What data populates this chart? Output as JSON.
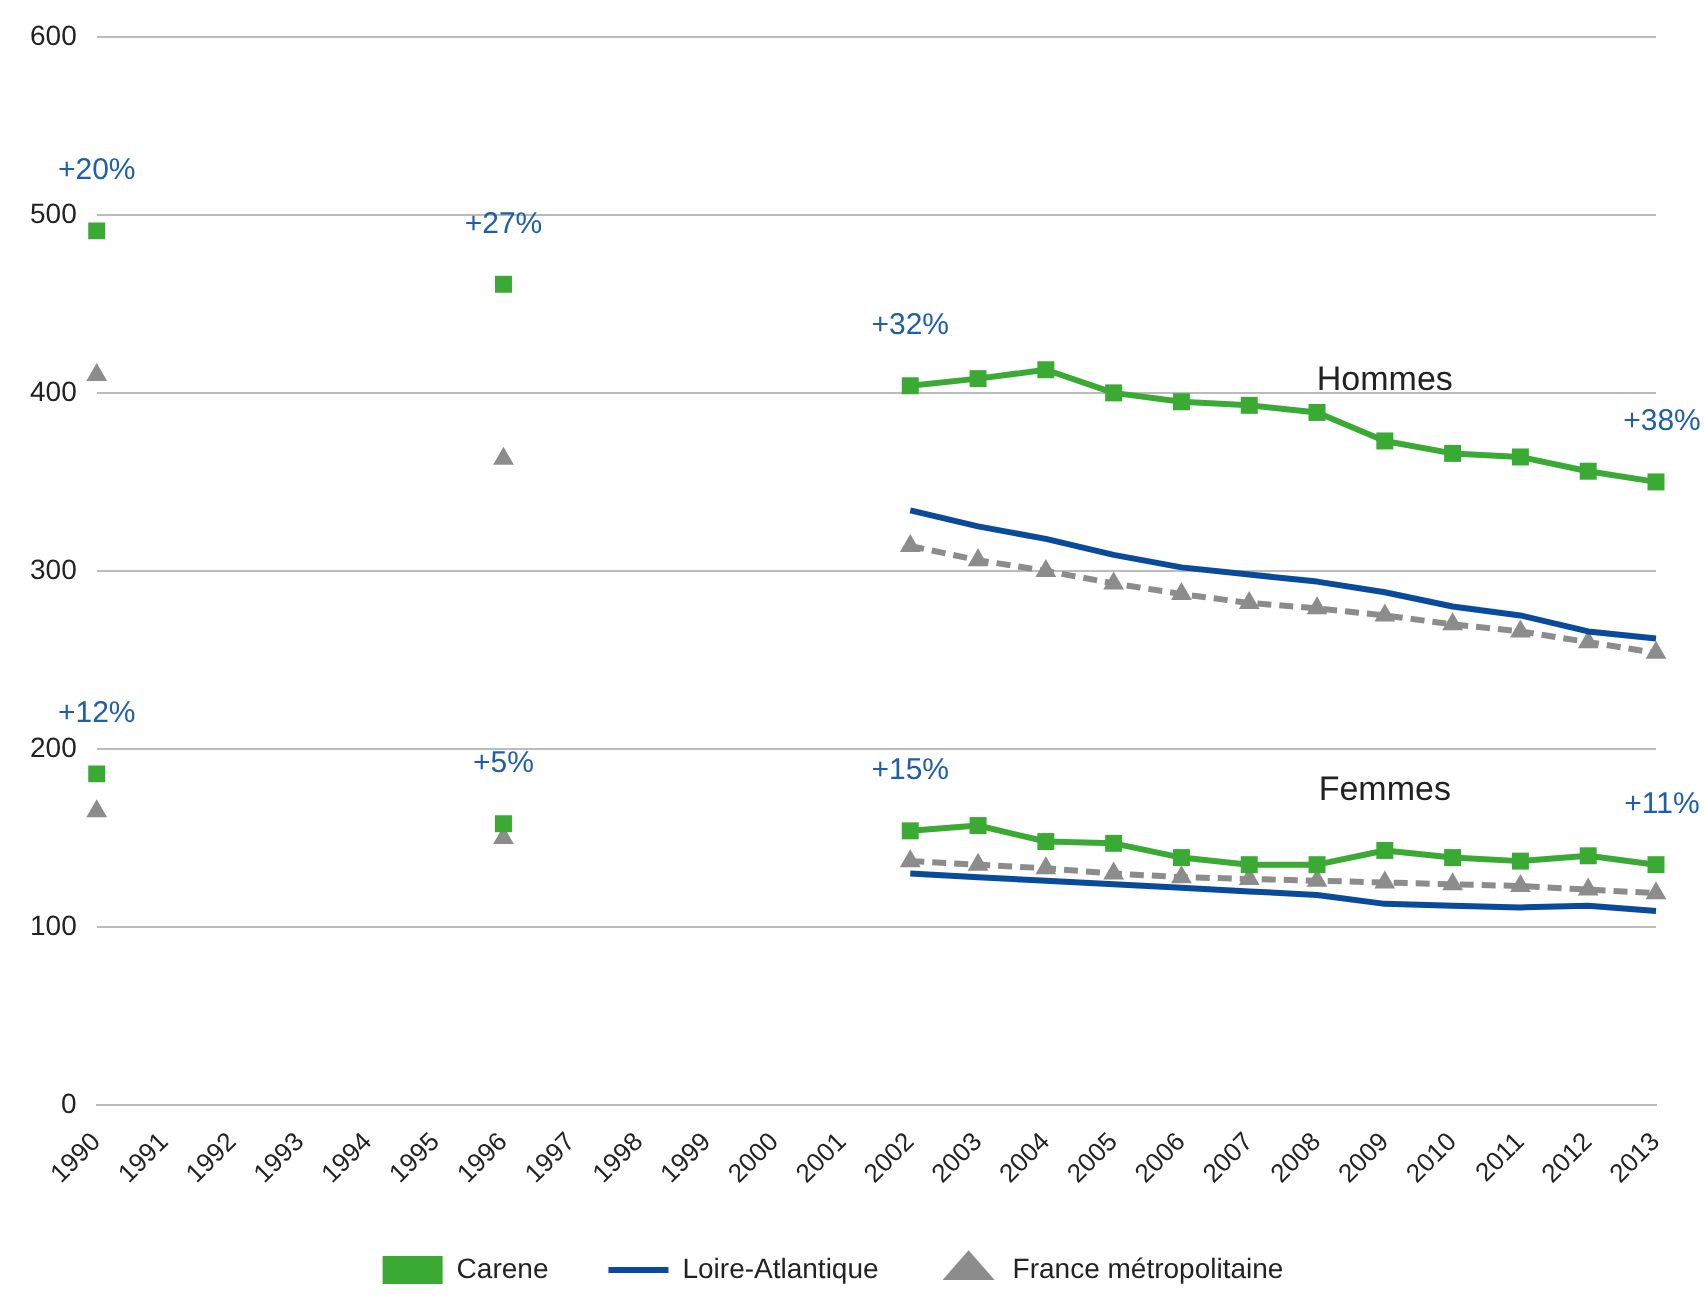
{
  "chart_data": {
    "type": "line",
    "categories": [
      "1990",
      "1991",
      "1992",
      "1993",
      "1994",
      "1995",
      "1996",
      "1997",
      "1998",
      "1999",
      "2000",
      "2001",
      "2002",
      "2003",
      "2004",
      "2005",
      "2006",
      "2007",
      "2008",
      "2009",
      "2010",
      "2011",
      "2012",
      "2013"
    ],
    "series": [
      {
        "name": "Carene",
        "color": "#3aaa35",
        "marker": "square",
        "line_style": "solid",
        "values": [
          491,
          null,
          null,
          null,
          null,
          null,
          461,
          null,
          null,
          null,
          null,
          null,
          404,
          408,
          413,
          400,
          395,
          393,
          389,
          373,
          366,
          364,
          356,
          350
        ]
      },
      {
        "name": "Loire-Atlantique",
        "color": "#0a4a9a",
        "marker": "none",
        "line_style": "solid",
        "values": [
          null,
          null,
          null,
          null,
          null,
          null,
          null,
          null,
          null,
          null,
          null,
          null,
          334,
          325,
          318,
          309,
          302,
          298,
          294,
          288,
          280,
          275,
          266,
          262
        ]
      },
      {
        "name": "France métropolitaine",
        "color": "#8c8c8c",
        "marker": "triangle",
        "line_style": "dashed",
        "values": [
          410,
          null,
          null,
          null,
          null,
          null,
          363,
          null,
          null,
          null,
          null,
          null,
          314,
          306,
          300,
          293,
          287,
          282,
          279,
          275,
          270,
          266,
          260,
          254
        ]
      },
      {
        "color": "#3aaa35",
        "marker": "square",
        "line_style": "solid",
        "values": [
          186,
          null,
          null,
          null,
          null,
          null,
          158,
          null,
          null,
          null,
          null,
          null,
          154,
          157,
          148,
          147,
          139,
          135,
          135,
          143,
          139,
          137,
          140,
          135
        ]
      },
      {
        "color": "#0a4a9a",
        "marker": "none",
        "line_style": "solid",
        "values": [
          null,
          null,
          null,
          null,
          null,
          null,
          null,
          null,
          null,
          null,
          null,
          null,
          130,
          128,
          126,
          124,
          122,
          120,
          118,
          113,
          112,
          111,
          112,
          109
        ]
      },
      {
        "color": "#8c8c8c",
        "marker": "triangle",
        "line_style": "dashed",
        "values": [
          165,
          null,
          null,
          null,
          null,
          null,
          150,
          null,
          null,
          null,
          null,
          null,
          137,
          135,
          133,
          130,
          128,
          127,
          126,
          125,
          124,
          123,
          121,
          119
        ]
      }
    ],
    "ylim": [
      0,
      600
    ],
    "yticks": [
      0,
      100,
      200,
      300,
      400,
      500,
      600
    ],
    "grid": "y",
    "legend": "bottom",
    "annotations": [
      {
        "text": "+20%",
        "x": "1990",
        "y": 491
      },
      {
        "text": "+27%",
        "x": "1996",
        "y": 461
      },
      {
        "text": "+32%",
        "x": "2002",
        "y": 404
      },
      {
        "text": "+38%",
        "x": "2013",
        "y": 350
      },
      {
        "text": "+12%",
        "x": "1990",
        "y": 186
      },
      {
        "text": "+5%",
        "x": "1996",
        "y": 158
      },
      {
        "text": "+15%",
        "x": "2002",
        "y": 154
      },
      {
        "text": "+11%",
        "x": "2013",
        "y": 135
      },
      {
        "text": "Hommes",
        "x": "2009",
        "y": 373
      },
      {
        "text": "Femmes",
        "x": "2009",
        "y": 143
      }
    ]
  }
}
